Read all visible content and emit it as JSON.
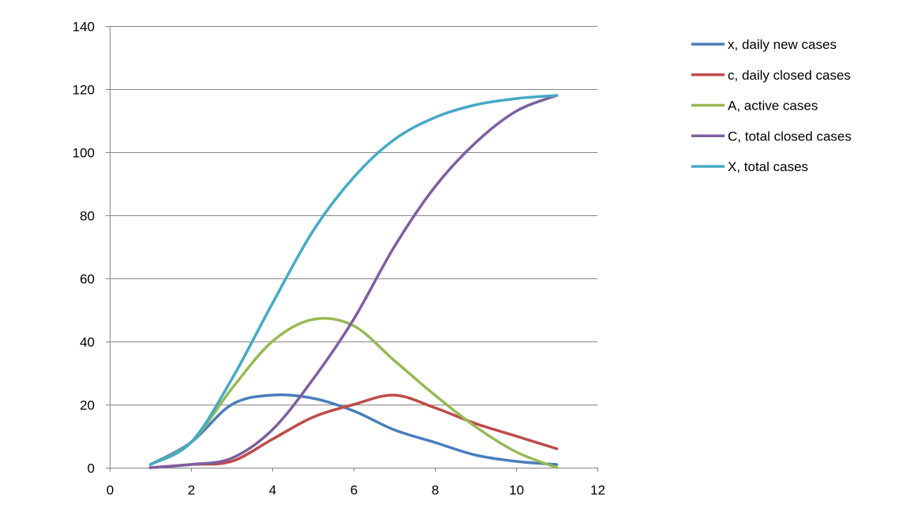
{
  "chart_data": {
    "type": "line",
    "title": "",
    "xlabel": "",
    "ylabel": "",
    "xlim": [
      0,
      12
    ],
    "ylim": [
      0,
      140
    ],
    "x_ticks": [
      0,
      2,
      4,
      6,
      8,
      10,
      12
    ],
    "y_ticks": [
      0,
      20,
      40,
      60,
      80,
      100,
      120,
      140
    ],
    "grid": "horizontal",
    "smooth": true,
    "legend_position": "right",
    "x": [
      1,
      2,
      3,
      4,
      5,
      6,
      7,
      8,
      9,
      10,
      11
    ],
    "series": [
      {
        "name": "x, daily new cases",
        "color": "#4a7ebb",
        "values": [
          1,
          8,
          20,
          23,
          22,
          18,
          12,
          8,
          4,
          2,
          1
        ]
      },
      {
        "name": "c, daily closed cases",
        "color": "#be4b48",
        "values": [
          0,
          1,
          2,
          9,
          16,
          20,
          23,
          19,
          14,
          10,
          6
        ]
      },
      {
        "name": "A, active cases",
        "color": "#98b954",
        "values": [
          1,
          8,
          25,
          40,
          47,
          45,
          34,
          23,
          13,
          5,
          0
        ]
      },
      {
        "name": "C, total closed cases",
        "color": "#7d60a0",
        "values": [
          0,
          1,
          3,
          12,
          28,
          47,
          70,
          89,
          103,
          113,
          118
        ]
      },
      {
        "name": "X, total cases",
        "color": "#46aac5",
        "values": [
          1,
          8,
          28,
          52,
          75,
          92,
          104,
          111,
          115,
          117,
          118
        ]
      }
    ]
  }
}
